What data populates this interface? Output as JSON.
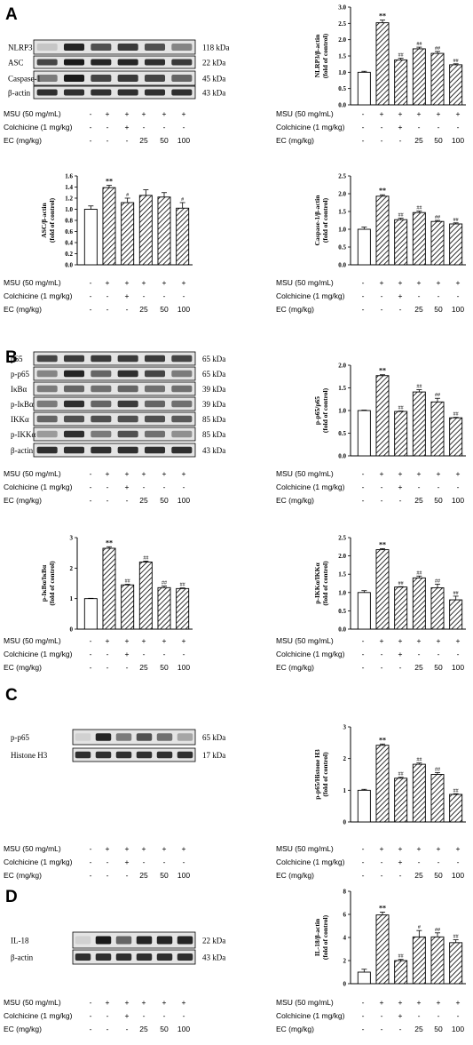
{
  "panels": [
    {
      "letter": "A"
    },
    {
      "letter": "B"
    },
    {
      "letter": "C"
    },
    {
      "letter": "D"
    }
  ],
  "treatment_table": {
    "rows": [
      {
        "label": "MSU (50 mg/mL)",
        "values": [
          "-",
          "+",
          "+",
          "+",
          "+",
          "+"
        ]
      },
      {
        "label": "Colchicine (1 mg/kg)",
        "values": [
          "-",
          "-",
          "+",
          "-",
          "-",
          "-"
        ]
      },
      {
        "label": "EC (mg/kg)",
        "values": [
          "-",
          "-",
          "-",
          "25",
          "50",
          "100"
        ]
      }
    ]
  },
  "blots": [
    {
      "id": "A",
      "rows": [
        {
          "name": "NLRP3",
          "kda": "118 kDa"
        },
        {
          "name": "ASC",
          "kda": "22 kDa"
        },
        {
          "name": "Caspase-1",
          "kda": "45 kDa"
        },
        {
          "name": "β-actin",
          "kda": "43 kDa"
        }
      ]
    },
    {
      "id": "B",
      "rows": [
        {
          "name": "p65",
          "kda": "65 kDa"
        },
        {
          "name": "p-p65",
          "kda": "65 kDa"
        },
        {
          "name": "IκBα",
          "kda": "39 kDa"
        },
        {
          "name": "p-IκBα",
          "kda": "39 kDa"
        },
        {
          "name": "IKKα",
          "kda": "85 kDa"
        },
        {
          "name": "p-IKKα",
          "kda": "85 kDa"
        },
        {
          "name": "β-actin",
          "kda": "43 kDa"
        }
      ]
    },
    {
      "id": "C",
      "rows": [
        {
          "name": "p-p65",
          "kda": "65 kDa"
        },
        {
          "name": "Histone H3",
          "kda": "17 kDa"
        }
      ]
    },
    {
      "id": "D",
      "rows": [
        {
          "name": "IL-18",
          "kda": "22 kDa"
        },
        {
          "name": "β-actin",
          "kda": "43 kDa"
        }
      ]
    }
  ],
  "chart_data": [
    {
      "type": "bar",
      "ylabel": [
        "NLRP3/β-actin",
        "(fold of control)"
      ],
      "ylim": [
        0,
        3
      ],
      "ticks": [
        "0.0",
        "0.5",
        "1.0",
        "1.5",
        "2.0",
        "2.5",
        "3.0"
      ],
      "values": [
        1.0,
        2.52,
        1.38,
        1.72,
        1.58,
        1.23
      ],
      "errors": [
        0.03,
        0.08,
        0.05,
        0.05,
        0.06,
        0.03
      ],
      "sig": [
        "",
        "**",
        "##",
        "##",
        "##",
        "##"
      ]
    },
    {
      "type": "bar",
      "ylabel": [
        "ASC/β-actin",
        "(fold of control)"
      ],
      "ylim": [
        0,
        1.6
      ],
      "ticks": [
        "0.0",
        "0.2",
        "0.4",
        "0.6",
        "0.8",
        "1.0",
        "1.2",
        "1.4",
        "1.6"
      ],
      "values": [
        1.0,
        1.39,
        1.12,
        1.25,
        1.22,
        1.02
      ],
      "errors": [
        0.06,
        0.04,
        0.08,
        0.1,
        0.08,
        0.1
      ],
      "sig": [
        "",
        "**",
        "#",
        "",
        "",
        "#"
      ]
    },
    {
      "type": "bar",
      "ylabel": [
        "Caspase-1/β-actin",
        "(fold of control)"
      ],
      "ylim": [
        0,
        2.5
      ],
      "ticks": [
        "0.0",
        "0.5",
        "1.0",
        "1.5",
        "2.0",
        "2.5"
      ],
      "values": [
        1.0,
        1.93,
        1.27,
        1.47,
        1.22,
        1.15
      ],
      "errors": [
        0.06,
        0.04,
        0.04,
        0.04,
        0.03,
        0.03
      ],
      "sig": [
        "",
        "**",
        "##",
        "##",
        "##",
        "##"
      ]
    },
    {
      "type": "bar",
      "ylabel": [
        "p-p65/p65",
        "(fold of control)"
      ],
      "ylim": [
        0,
        2.0
      ],
      "ticks": [
        "0.0",
        "0.5",
        "1.0",
        "1.5",
        "2.0"
      ],
      "values": [
        1.0,
        1.77,
        0.98,
        1.41,
        1.19,
        0.84
      ],
      "errors": [
        0.01,
        0.02,
        0.01,
        0.05,
        0.08,
        0.01
      ],
      "sig": [
        "",
        "**",
        "##",
        "##",
        "##",
        "##"
      ]
    },
    {
      "type": "bar",
      "ylabel": [
        "p-IκBα/IκBα",
        "(fold of control)"
      ],
      "ylim": [
        0,
        3
      ],
      "ticks": [
        "0",
        "1",
        "2",
        "3"
      ],
      "values": [
        1.0,
        2.65,
        1.45,
        2.2,
        1.36,
        1.33
      ],
      "errors": [
        0.01,
        0.05,
        0.02,
        0.03,
        0.05,
        0.02
      ],
      "sig": [
        "",
        "**",
        "##",
        "##",
        "##",
        "##"
      ]
    },
    {
      "type": "bar",
      "ylabel": [
        "p-IKKα/IKKα",
        "(fold of control)"
      ],
      "ylim": [
        0,
        2.5
      ],
      "ticks": [
        "0.0",
        "0.5",
        "1.0",
        "1.5",
        "2.0",
        "2.5"
      ],
      "values": [
        1.0,
        2.17,
        1.15,
        1.4,
        1.13,
        0.8
      ],
      "errors": [
        0.05,
        0.03,
        0.01,
        0.05,
        0.1,
        0.1
      ],
      "sig": [
        "",
        "**",
        "##",
        "##",
        "##",
        "##"
      ]
    },
    {
      "type": "bar",
      "ylabel": [
        "p-p65/Histone H3",
        "(fold of control)"
      ],
      "ylim": [
        0,
        3
      ],
      "ticks": [
        "0",
        "1",
        "2",
        "3"
      ],
      "values": [
        1.0,
        2.42,
        1.38,
        1.82,
        1.5,
        0.87
      ],
      "errors": [
        0.03,
        0.04,
        0.03,
        0.04,
        0.06,
        0.02
      ],
      "sig": [
        "",
        "**",
        "##",
        "##",
        "##",
        "##"
      ]
    },
    {
      "type": "bar",
      "ylabel": [
        "IL-18/β-actin",
        "(fold of control)"
      ],
      "ylim": [
        0,
        8
      ],
      "ticks": [
        "0",
        "2",
        "4",
        "6",
        "8"
      ],
      "values": [
        1.0,
        5.95,
        2.0,
        4.05,
        4.05,
        3.55
      ],
      "errors": [
        0.25,
        0.25,
        0.1,
        0.55,
        0.35,
        0.25
      ],
      "sig": [
        "",
        "**",
        "##",
        "#",
        "##",
        "##"
      ]
    }
  ]
}
